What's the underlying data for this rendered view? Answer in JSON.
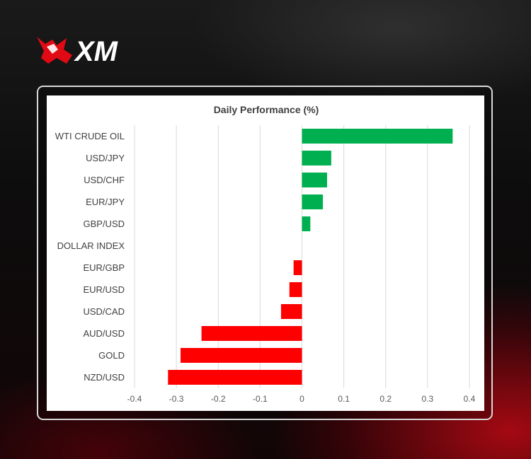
{
  "brand": {
    "name": "XM",
    "colors": {
      "red": "#e10a14",
      "white": "#ffffff"
    }
  },
  "chart_data": {
    "type": "bar",
    "orientation": "horizontal",
    "title": "Daily Performance (%)",
    "xlabel": "",
    "ylabel": "",
    "xlim": [
      -0.4,
      0.4
    ],
    "x_ticks": [
      "-0.4",
      "-0.3",
      "-0.2",
      "-0.1",
      "0",
      "0.1",
      "0.2",
      "0.3",
      "0.4"
    ],
    "grid": "vertical",
    "categories": [
      "WTI CRUDE OIL",
      "USD/JPY",
      "USD/CHF",
      "EUR/JPY",
      "GBP/USD",
      "DOLLAR INDEX",
      "EUR/GBP",
      "EUR/USD",
      "USD/CAD",
      "AUD/USD",
      "GOLD",
      "NZD/USD"
    ],
    "values": [
      0.36,
      0.07,
      0.06,
      0.05,
      0.02,
      0.0,
      -0.02,
      -0.03,
      -0.05,
      -0.24,
      -0.29,
      -0.32
    ],
    "colors": {
      "positive": "#00b050",
      "negative": "#ff0000"
    }
  }
}
